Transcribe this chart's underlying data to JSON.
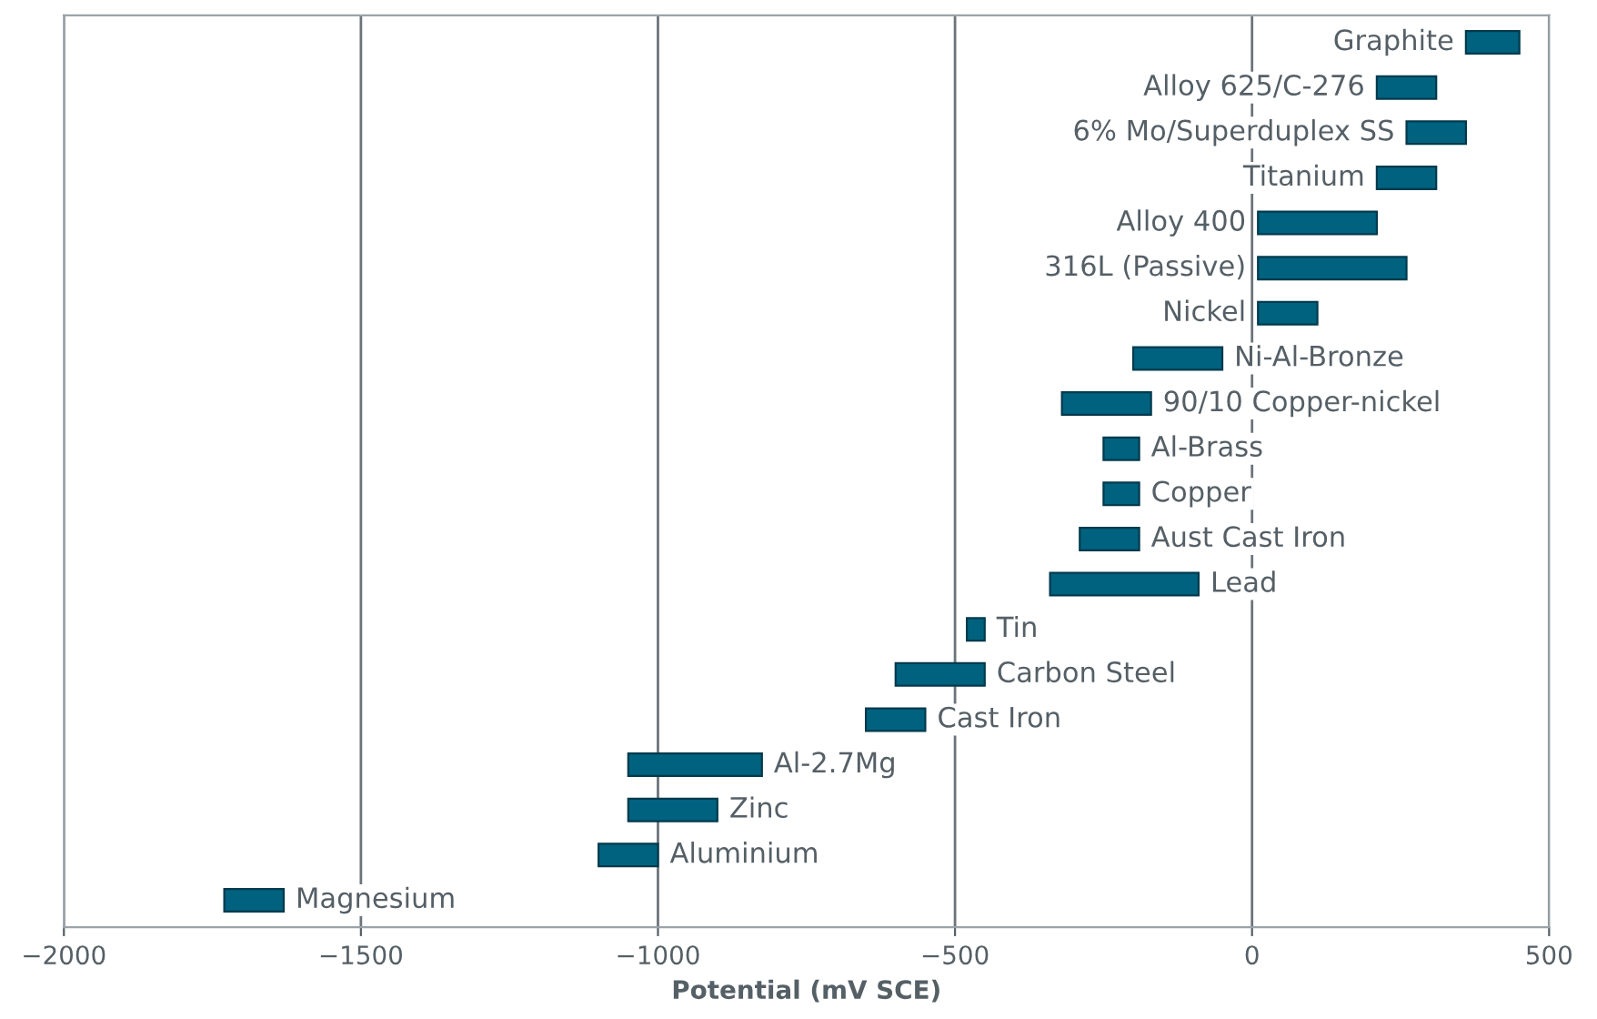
{
  "chart_data": {
    "type": "bar",
    "orientation": "horizontal",
    "xlabel": "Potential (mV SCE)",
    "categories": [
      "Graphite",
      "Alloy 625/C-276",
      "6% Mo/Superduplex SS",
      "Titanium",
      "Alloy 400",
      "316L (Passive)",
      "Nickel",
      "Ni-Al-Bronze",
      "90/10 Copper-nickel",
      "Al-Brass",
      "Copper",
      "Aust Cast Iron",
      "Lead",
      "Tin",
      "Carbon Steel",
      "Cast Iron",
      "Al-2.7Mg",
      "Zinc",
      "Aluminium",
      "Magnesium"
    ],
    "base": [
      360,
      210,
      260,
      210,
      10,
      10,
      10,
      -200,
      -320,
      -250,
      -250,
      -290,
      -340,
      -480,
      -600,
      -650,
      -1050,
      -1050,
      -1100,
      -1730
    ],
    "values": [
      90,
      100,
      100,
      100,
      200,
      250,
      100,
      150,
      150,
      60,
      60,
      100,
      250,
      30,
      150,
      100,
      225,
      150,
      100,
      100
    ],
    "color": "#00627f",
    "xlim": [
      -2000,
      500
    ],
    "xticks": [
      -2000,
      -1500,
      -1000,
      -500,
      0,
      500
    ],
    "grid": "x"
  }
}
